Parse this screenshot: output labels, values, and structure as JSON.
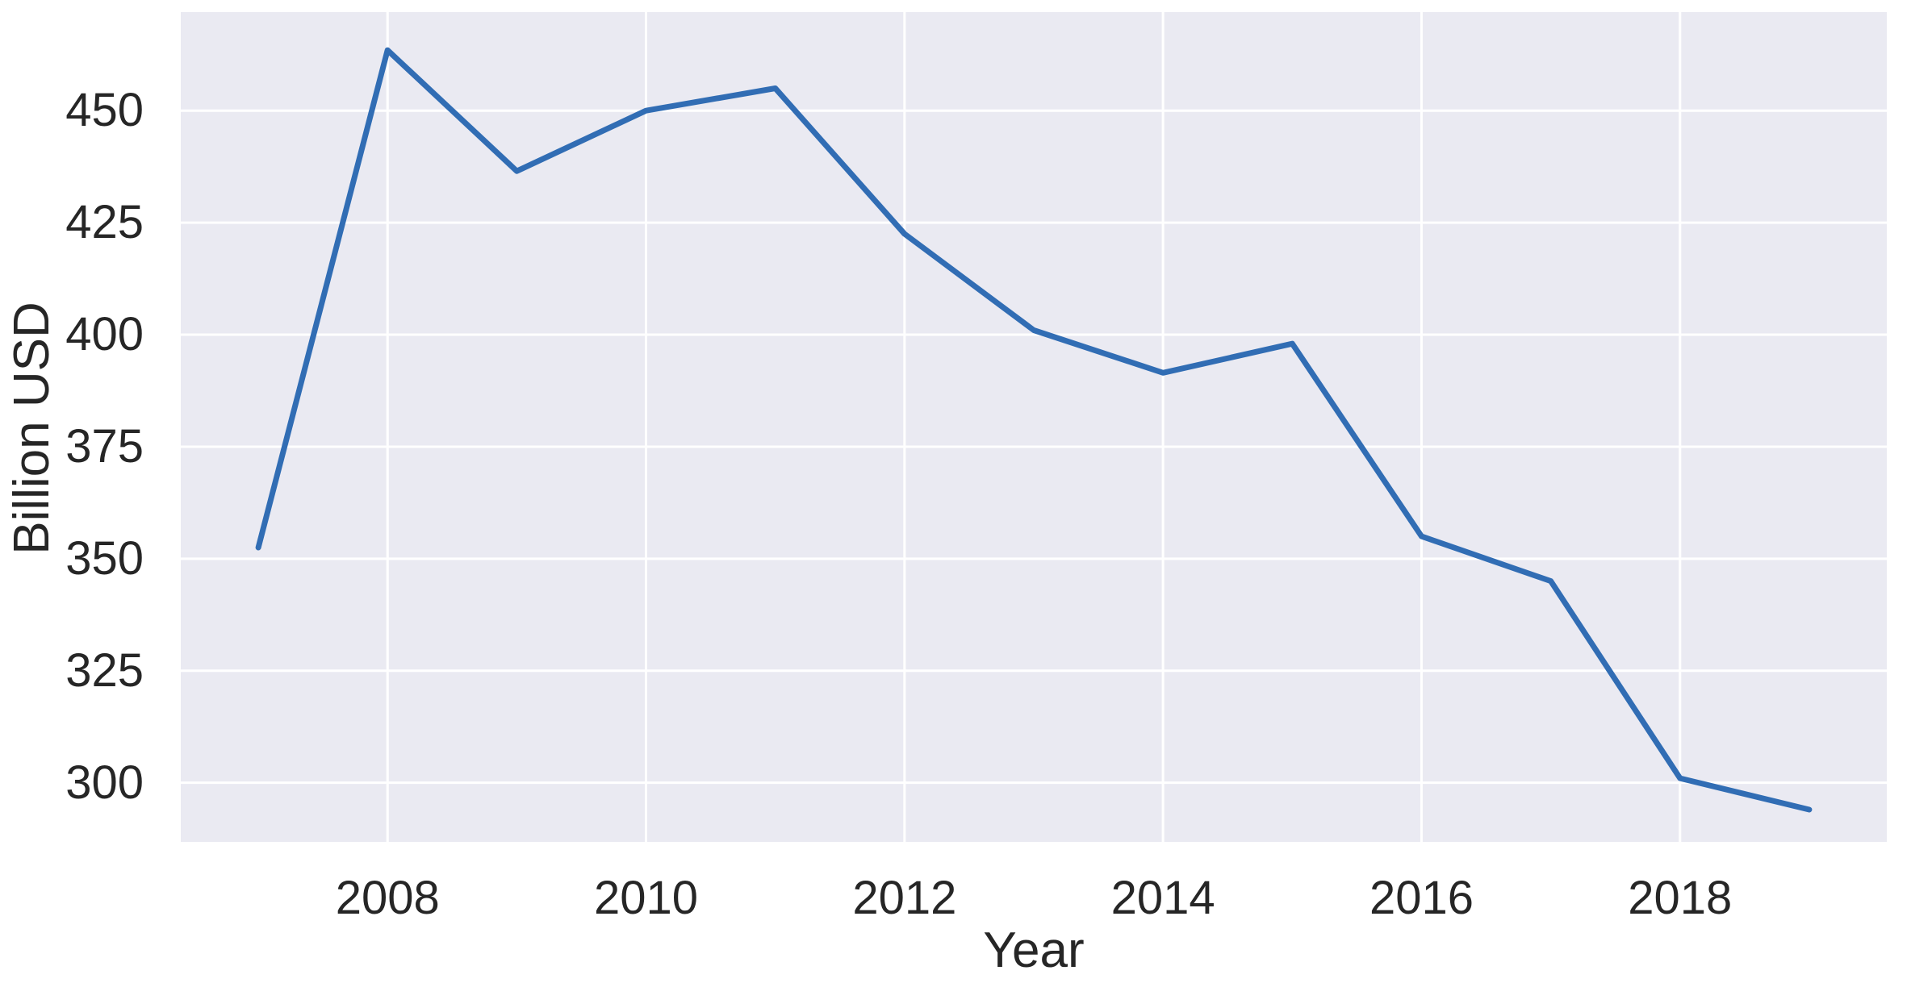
{
  "figure": {
    "background": "#ffffff",
    "plot_background": "#eaeaf2",
    "grid_color": "#ffffff",
    "line_color": "#316db4",
    "text_color": "#262626"
  },
  "chart_data": {
    "type": "line",
    "title": "",
    "xlabel": "Year",
    "ylabel": "Billion USD",
    "x": [
      2007,
      2008,
      2009,
      2010,
      2011,
      2012,
      2013,
      2014,
      2015,
      2016,
      2017,
      2018,
      2019
    ],
    "values": [
      352.5,
      463.5,
      436.5,
      450,
      455,
      422.5,
      401,
      391.5,
      398,
      355,
      345,
      301,
      294
    ],
    "xlim": [
      2006.4,
      2019.6
    ],
    "ylim": [
      286.8,
      472.0
    ],
    "xticks": [
      "2008",
      "2010",
      "2012",
      "2014",
      "2016",
      "2018"
    ],
    "xtick_values": [
      2008,
      2010,
      2012,
      2014,
      2016,
      2018
    ],
    "yticks": [
      "300",
      "325",
      "350",
      "375",
      "400",
      "425",
      "450"
    ],
    "ytick_values": [
      300,
      325,
      350,
      375,
      400,
      425,
      450
    ],
    "grid": true,
    "legend": false,
    "style": "seaborn-darkgrid"
  }
}
